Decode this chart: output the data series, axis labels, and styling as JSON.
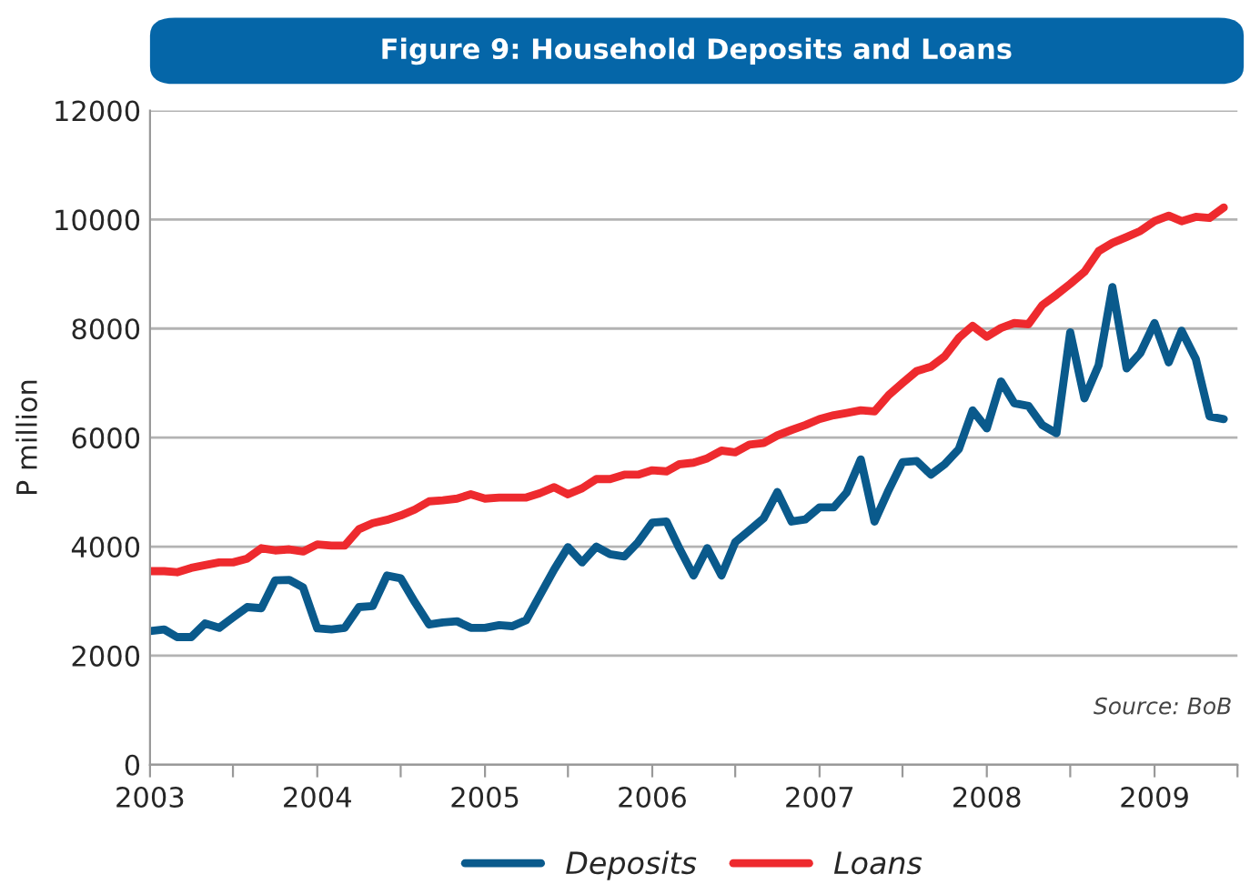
{
  "chart_data": {
    "type": "line",
    "title": "Figure 9: Household Deposits and Loans",
    "ylabel": "P million",
    "x": [
      "2003-01",
      "2003-02",
      "2003-03",
      "2003-04",
      "2003-05",
      "2003-06",
      "2003-07",
      "2003-08",
      "2003-09",
      "2003-10",
      "2003-11",
      "2003-12",
      "2004-01",
      "2004-02",
      "2004-03",
      "2004-04",
      "2004-05",
      "2004-06",
      "2004-07",
      "2004-08",
      "2004-09",
      "2004-10",
      "2004-11",
      "2004-12",
      "2005-01",
      "2005-02",
      "2005-03",
      "2005-04",
      "2005-05",
      "2005-06",
      "2005-07",
      "2005-08",
      "2005-09",
      "2005-10",
      "2005-11",
      "2005-12",
      "2006-01",
      "2006-02",
      "2006-03",
      "2006-04",
      "2006-05",
      "2006-06",
      "2006-07",
      "2006-08",
      "2006-09",
      "2006-10",
      "2006-11",
      "2006-12",
      "2007-01",
      "2007-02",
      "2007-03",
      "2007-04",
      "2007-05",
      "2007-06",
      "2007-07",
      "2007-08",
      "2007-09",
      "2007-10",
      "2007-11",
      "2007-12",
      "2008-01",
      "2008-02",
      "2008-03",
      "2008-04",
      "2008-05",
      "2008-06",
      "2008-07",
      "2008-08",
      "2008-09",
      "2008-10",
      "2008-11",
      "2008-12",
      "2009-01",
      "2009-02",
      "2009-03",
      "2009-04",
      "2009-05",
      "2009-06"
    ],
    "series": [
      {
        "name": "Deposits",
        "color": "#0a5a8c",
        "values": [
          2450,
          2480,
          2340,
          2340,
          2590,
          2510,
          2700,
          2890,
          2870,
          3380,
          3390,
          3250,
          2500,
          2480,
          2510,
          2890,
          2910,
          3470,
          3420,
          2980,
          2570,
          2610,
          2630,
          2510,
          2510,
          2560,
          2540,
          2650,
          3110,
          3580,
          3990,
          3710,
          4000,
          3860,
          3820,
          4080,
          4440,
          4460,
          3970,
          3470,
          3970,
          3470,
          4080,
          4300,
          4520,
          5000,
          4460,
          4500,
          4720,
          4720,
          4990,
          5600,
          4460,
          5040,
          5550,
          5570,
          5320,
          5510,
          5790,
          6500,
          6170,
          7030,
          6630,
          6580,
          6230,
          6080,
          7930,
          6720,
          7330,
          8760,
          7270,
          7550,
          8100,
          7380,
          7960,
          7440,
          6390,
          6340
        ]
      },
      {
        "name": "Loans",
        "color": "#ee2a2e",
        "values": [
          3550,
          3550,
          3530,
          3610,
          3660,
          3710,
          3710,
          3780,
          3970,
          3930,
          3950,
          3910,
          4040,
          4020,
          4020,
          4320,
          4430,
          4490,
          4570,
          4680,
          4830,
          4850,
          4880,
          4960,
          4880,
          4900,
          4900,
          4900,
          4980,
          5090,
          4960,
          5070,
          5240,
          5240,
          5320,
          5320,
          5400,
          5380,
          5510,
          5540,
          5620,
          5760,
          5730,
          5870,
          5900,
          6040,
          6140,
          6230,
          6340,
          6410,
          6450,
          6500,
          6480,
          6780,
          7000,
          7220,
          7300,
          7490,
          7830,
          8050,
          7850,
          8010,
          8100,
          8080,
          8430,
          8620,
          8820,
          9040,
          9420,
          9570,
          9680,
          9790,
          9970,
          10070,
          9970,
          10050,
          10030,
          10220
        ]
      }
    ],
    "xlim": [
      "2003-01",
      "2009-07"
    ],
    "xticks": [
      {
        "value": "2003-01",
        "label": "2003"
      },
      {
        "value": "2003-07",
        "label": null
      },
      {
        "value": "2004-01",
        "label": "2004"
      },
      {
        "value": "2004-07",
        "label": null
      },
      {
        "value": "2005-01",
        "label": "2005"
      },
      {
        "value": "2005-07",
        "label": null
      },
      {
        "value": "2006-01",
        "label": "2006"
      },
      {
        "value": "2006-07",
        "label": null
      },
      {
        "value": "2007-01",
        "label": "2007"
      },
      {
        "value": "2007-07",
        "label": null
      },
      {
        "value": "2008-01",
        "label": "2008"
      },
      {
        "value": "2008-07",
        "label": null
      },
      {
        "value": "2009-01",
        "label": "2009"
      },
      {
        "value": "2009-07",
        "label": null
      }
    ],
    "ylim": [
      0,
      12000
    ],
    "yticks": [
      0,
      2000,
      4000,
      6000,
      8000,
      10000,
      12000
    ],
    "grid": "y",
    "legend": "bottom",
    "marker": "none",
    "line_style": "solid",
    "annotations": [
      "Source: BoB"
    ]
  }
}
